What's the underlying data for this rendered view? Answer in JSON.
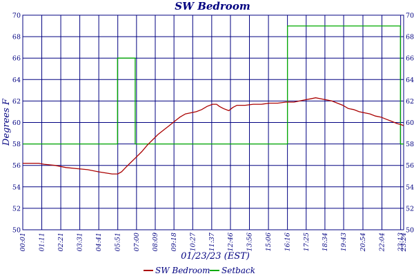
{
  "chart_data": {
    "type": "line",
    "title": "SW Bedroom",
    "xlabel": "01/23/23 (EST)",
    "ylabel": "Degrees F",
    "ylim": [
      50,
      70
    ],
    "yticks": [
      50,
      52,
      54,
      56,
      58,
      60,
      62,
      64,
      66,
      68,
      70
    ],
    "x_tick_labels": [
      "00:01",
      "01:11",
      "02:21",
      "03:31",
      "04:41",
      "05:51",
      "07:00",
      "08:09",
      "09:18",
      "10:27",
      "11:37",
      "12:46",
      "13:56",
      "15:06",
      "16:16",
      "17:25",
      "18:34",
      "19:43",
      "20:54",
      "22:04",
      "23:13",
      "23:24"
    ],
    "x_tick_minutes": [
      1,
      71,
      141,
      211,
      281,
      351,
      420,
      489,
      558,
      627,
      697,
      766,
      836,
      906,
      976,
      1045,
      1114,
      1183,
      1254,
      1324,
      1393,
      1404
    ],
    "xlim_minutes": [
      1,
      1404
    ],
    "grid": true,
    "legend_position": "bottom-center",
    "series": [
      {
        "name": "SW Bedroom",
        "color": "#aa0000",
        "points": [
          [
            1,
            56.2
          ],
          [
            60,
            56.2
          ],
          [
            80,
            56.1
          ],
          [
            120,
            56.0
          ],
          [
            160,
            55.8
          ],
          [
            200,
            55.7
          ],
          [
            240,
            55.6
          ],
          [
            280,
            55.4
          ],
          [
            330,
            55.2
          ],
          [
            351,
            55.2
          ],
          [
            365,
            55.4
          ],
          [
            380,
            55.8
          ],
          [
            400,
            56.3
          ],
          [
            420,
            56.8
          ],
          [
            440,
            57.3
          ],
          [
            460,
            57.9
          ],
          [
            480,
            58.4
          ],
          [
            500,
            58.9
          ],
          [
            520,
            59.3
          ],
          [
            540,
            59.7
          ],
          [
            560,
            60.1
          ],
          [
            580,
            60.5
          ],
          [
            600,
            60.8
          ],
          [
            620,
            60.9
          ],
          [
            640,
            61.0
          ],
          [
            660,
            61.2
          ],
          [
            680,
            61.5
          ],
          [
            700,
            61.7
          ],
          [
            715,
            61.7
          ],
          [
            725,
            61.5
          ],
          [
            740,
            61.3
          ],
          [
            760,
            61.1
          ],
          [
            775,
            61.4
          ],
          [
            790,
            61.6
          ],
          [
            820,
            61.6
          ],
          [
            850,
            61.7
          ],
          [
            880,
            61.7
          ],
          [
            910,
            61.8
          ],
          [
            940,
            61.8
          ],
          [
            970,
            61.9
          ],
          [
            1000,
            61.9
          ],
          [
            1020,
            62.0
          ],
          [
            1040,
            62.1
          ],
          [
            1060,
            62.2
          ],
          [
            1080,
            62.3
          ],
          [
            1100,
            62.2
          ],
          [
            1120,
            62.1
          ],
          [
            1140,
            62.0
          ],
          [
            1160,
            61.8
          ],
          [
            1180,
            61.6
          ],
          [
            1200,
            61.3
          ],
          [
            1220,
            61.2
          ],
          [
            1240,
            61.0
          ],
          [
            1260,
            60.9
          ],
          [
            1280,
            60.8
          ],
          [
            1300,
            60.6
          ],
          [
            1320,
            60.5
          ],
          [
            1340,
            60.3
          ],
          [
            1360,
            60.1
          ],
          [
            1380,
            59.9
          ],
          [
            1395,
            59.8
          ],
          [
            1404,
            59.7
          ]
        ]
      },
      {
        "name": "Setback",
        "color": "#00aa00",
        "points": [
          [
            1,
            58
          ],
          [
            350,
            58
          ],
          [
            350,
            66
          ],
          [
            415,
            66
          ],
          [
            415,
            58
          ],
          [
            976,
            58
          ],
          [
            976,
            69
          ],
          [
            1392,
            69
          ],
          [
            1392,
            58
          ],
          [
            1404,
            58
          ]
        ]
      }
    ]
  }
}
